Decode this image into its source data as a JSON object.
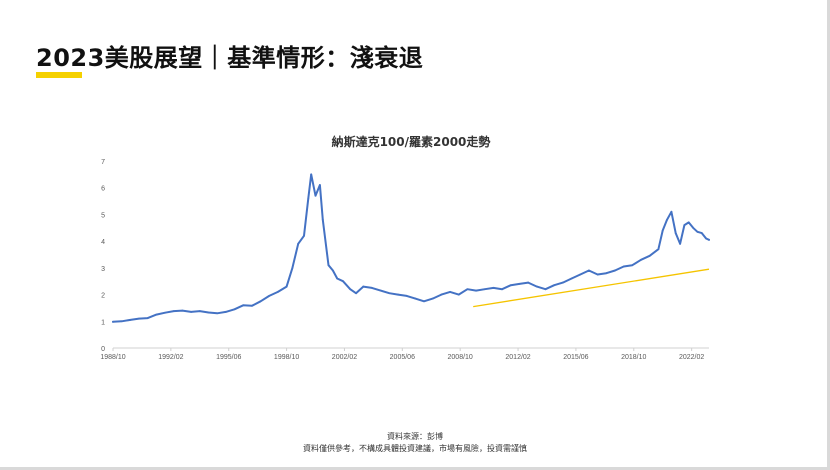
{
  "slide": {
    "title": "2023美股展望｜基準情形：淺衰退",
    "source_note": "資料來源：彭博",
    "disclaimer": "資料僅供參考，不構成具體投資建議，市場有風險，投資需謹慎"
  },
  "colors": {
    "accent": "#f5d100",
    "series_line": "#4472c4",
    "trend_line": "#f5c400"
  },
  "chart_data": {
    "type": "line",
    "title": "納斯達克100/羅素2000走勢",
    "xlabel": "",
    "ylabel": "",
    "grid": false,
    "legend": "none",
    "xlim": [
      "1988/10",
      "2023/02"
    ],
    "ylim": [
      0,
      7
    ],
    "yticks": [
      0,
      1,
      2,
      3,
      4,
      5,
      6,
      7
    ],
    "xticks": [
      "1988/10",
      "1992/02",
      "1995/06",
      "1998/10",
      "2002/02",
      "2005/06",
      "2008/10",
      "2012/02",
      "2015/06",
      "2018/10",
      "2022/02"
    ],
    "series": [
      {
        "x": [
          "1988/10",
          "1989/04",
          "1989/10",
          "1990/04",
          "1990/10",
          "1991/04",
          "1991/10",
          "1992/04",
          "1992/10",
          "1993/04",
          "1993/10",
          "1994/04",
          "1994/10",
          "1995/04",
          "1995/10",
          "1996/04",
          "1996/10",
          "1997/04",
          "1997/10",
          "1998/04",
          "1998/10",
          "1999/02",
          "1999/06",
          "1999/10",
          "2000/01",
          "2000/03",
          "2000/06",
          "2000/09",
          "2000/11",
          "2001/03",
          "2001/06",
          "2001/09",
          "2002/01",
          "2002/06",
          "2002/10",
          "2003/03",
          "2003/09",
          "2004/03",
          "2004/09",
          "2005/03",
          "2005/09",
          "2006/03",
          "2006/09",
          "2007/03",
          "2007/09",
          "2008/03",
          "2008/09",
          "2009/03",
          "2009/09",
          "2010/03",
          "2010/09",
          "2011/03",
          "2011/09",
          "2012/03",
          "2012/09",
          "2013/03",
          "2013/09",
          "2014/03",
          "2014/09",
          "2015/03",
          "2015/09",
          "2016/03",
          "2016/09",
          "2017/03",
          "2017/09",
          "2018/03",
          "2018/09",
          "2019/03",
          "2019/09",
          "2020/03",
          "2020/06",
          "2020/09",
          "2020/12",
          "2021/03",
          "2021/06",
          "2021/09",
          "2021/12",
          "2022/03",
          "2022/06",
          "2022/09",
          "2022/12",
          "2023/02"
        ],
        "values": [
          0.98,
          1.0,
          1.05,
          1.1,
          1.12,
          1.25,
          1.32,
          1.38,
          1.4,
          1.35,
          1.38,
          1.33,
          1.3,
          1.35,
          1.45,
          1.6,
          1.58,
          1.75,
          1.95,
          2.1,
          2.3,
          3.0,
          3.9,
          4.2,
          5.6,
          6.5,
          5.7,
          6.1,
          4.8,
          3.1,
          2.9,
          2.6,
          2.5,
          2.2,
          2.05,
          2.3,
          2.25,
          2.15,
          2.05,
          2.0,
          1.95,
          1.85,
          1.75,
          1.85,
          2.0,
          2.1,
          2.0,
          2.2,
          2.15,
          2.2,
          2.25,
          2.2,
          2.35,
          2.4,
          2.45,
          2.3,
          2.2,
          2.35,
          2.45,
          2.6,
          2.75,
          2.9,
          2.75,
          2.8,
          2.9,
          3.05,
          3.1,
          3.3,
          3.45,
          3.7,
          4.4,
          4.8,
          5.1,
          4.3,
          3.9,
          4.6,
          4.7,
          4.5,
          4.35,
          4.3,
          4.1,
          4.05
        ]
      }
    ],
    "trendline": {
      "x": [
        "2009/07",
        "2023/02"
      ],
      "values": [
        1.55,
        2.95
      ]
    }
  }
}
